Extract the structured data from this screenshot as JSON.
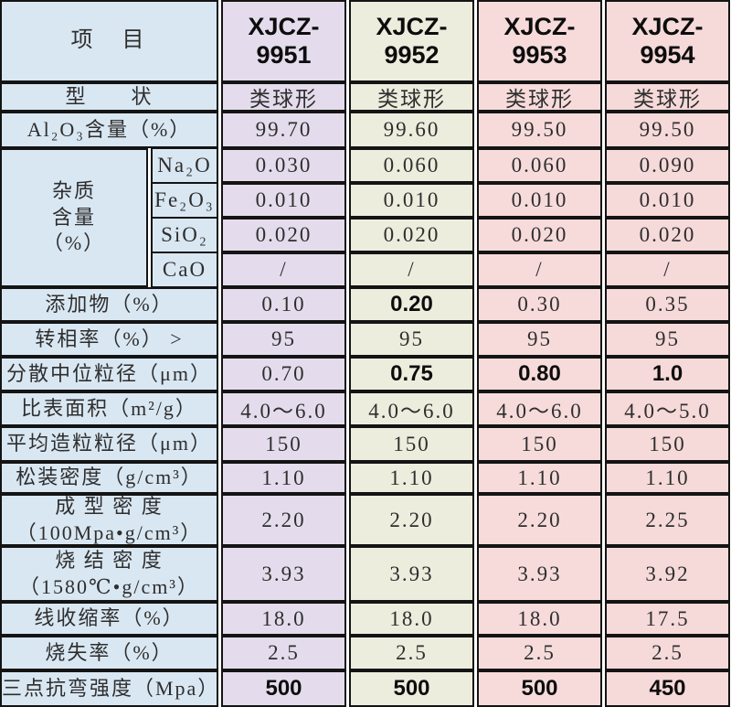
{
  "colors": {
    "label-bg": "#d9e7f2",
    "col1-bg": "#e4dcec",
    "col2-bg": "#eceddd",
    "col3-bg": "#f7dbdb",
    "col4-bg": "#f6d9d9",
    "border": "#141414"
  },
  "header": {
    "item": "项　目",
    "products": [
      "XJCZ-9951",
      "XJCZ-9952",
      "XJCZ-9953",
      "XJCZ-9954"
    ]
  },
  "rows": {
    "shape": {
      "label": "型　　状",
      "values": [
        "类球形",
        "类球形",
        "类球形",
        "类球形"
      ]
    },
    "al2o3": {
      "label": "Al₂O₃含量（%）",
      "values": [
        "99.70",
        "99.60",
        "99.50",
        "99.50"
      ]
    },
    "impurity": {
      "label": "杂质\n含量\n（%）",
      "sub": [
        {
          "name": "Na₂O",
          "values": [
            "0.030",
            "0.060",
            "0.060",
            "0.090"
          ]
        },
        {
          "name": "Fe₂O₃",
          "values": [
            "0.010",
            "0.010",
            "0.010",
            "0.010"
          ]
        },
        {
          "name": "SiO₂",
          "values": [
            "0.020",
            "0.020",
            "0.020",
            "0.020"
          ]
        },
        {
          "name": "CaO",
          "values": [
            "/",
            "/",
            "/",
            "/"
          ]
        }
      ]
    },
    "additive": {
      "label": "添加物（%）",
      "values": [
        "0.10",
        "0.20",
        "0.30",
        "0.35"
      ]
    },
    "phase": {
      "label": "转相率（%） >",
      "values": [
        "95",
        "95",
        "95",
        "95"
      ]
    },
    "median": {
      "label": "分散中位粒径（μm）",
      "values": [
        "0.70",
        "0.75",
        "0.80",
        "1.0"
      ]
    },
    "ssa": {
      "label": "比表面积（m²/g）",
      "values": [
        "4.0～6.0",
        "4.0～6.0",
        "4.0～6.0",
        "4.0～5.0"
      ]
    },
    "granule": {
      "label": "平均造粒粒径（μm）",
      "values": [
        "150",
        "150",
        "150",
        "150"
      ]
    },
    "bulk": {
      "label": "松装密度（g/cm³）",
      "values": [
        "1.10",
        "1.10",
        "1.10",
        "1.10"
      ]
    },
    "green": {
      "label": "成 型 密 度\n（100Mpa•g/cm³）",
      "values": [
        "2.20",
        "2.20",
        "2.20",
        "2.25"
      ]
    },
    "sintered": {
      "label": "烧 结 密 度\n（1580℃•g/cm³）",
      "values": [
        "3.93",
        "3.93",
        "3.93",
        "3.92"
      ]
    },
    "shrink": {
      "label": "线收缩率（%）",
      "values": [
        "18.0",
        "18.0",
        "18.0",
        "17.5"
      ]
    },
    "loi": {
      "label": "烧失率（%）",
      "values": [
        "2.5",
        "2.5",
        "2.5",
        "2.5"
      ]
    },
    "flex": {
      "label": "三点抗弯强度（Mpa）",
      "values": [
        "500",
        "500",
        "500",
        "450"
      ]
    }
  }
}
